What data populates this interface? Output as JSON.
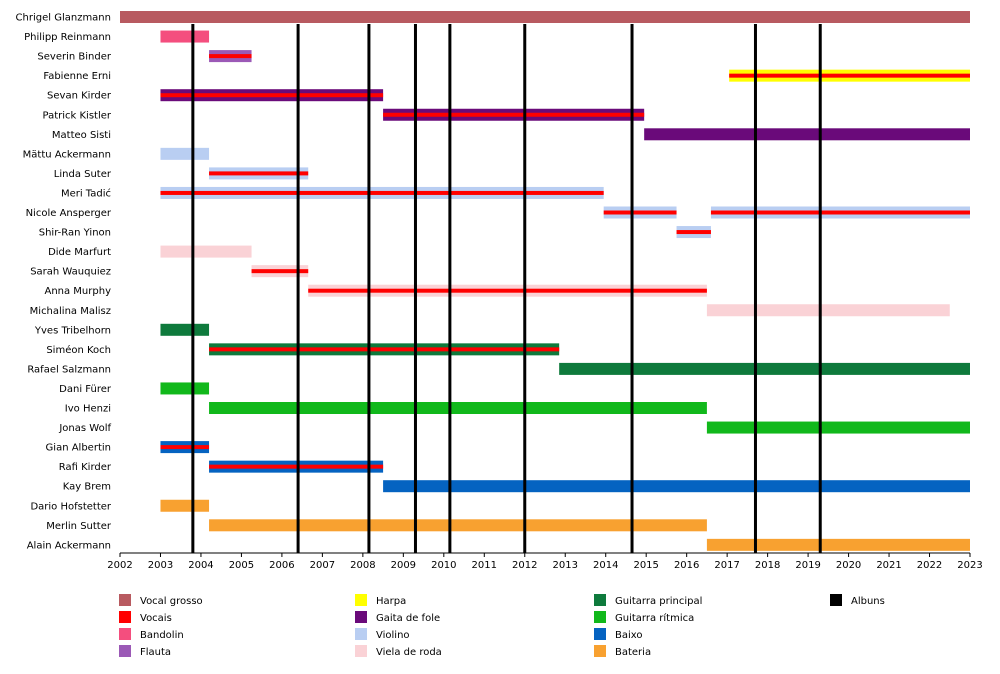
{
  "chart_data": {
    "type": "timeline",
    "x_range": [
      2002,
      2023
    ],
    "x_ticks": [
      "2002",
      "2003",
      "2004",
      "2005",
      "2006",
      "2007",
      "2008",
      "2009",
      "2010",
      "2011",
      "2012",
      "2013",
      "2014",
      "2015",
      "2016",
      "2017",
      "2018",
      "2019",
      "2020",
      "2021",
      "2022",
      "2023"
    ],
    "album_years": [
      2003.8,
      2006.4,
      2008.15,
      2009.3,
      2010.15,
      2012.0,
      2014.65,
      2017.7,
      2019.3
    ],
    "roles": {
      "vocal_grosso": {
        "label": "Vocal grosso",
        "color": "#b85a60"
      },
      "vocais": {
        "label": "Vocais",
        "color": "#ff0000"
      },
      "bandolin": {
        "label": "Bandolin",
        "color": "#f44e7e"
      },
      "flauta": {
        "label": "Flauta",
        "color": "#9b59b6"
      },
      "harpa": {
        "label": "Harpa",
        "color": "#ffff00"
      },
      "gaita": {
        "label": "Gaita de fole",
        "color": "#6a0a7a"
      },
      "violino": {
        "label": "Violino",
        "color": "#b9cef2"
      },
      "viela": {
        "label": "Viela de roda",
        "color": "#fad2d6"
      },
      "guitarra_principal": {
        "label": "Guitarra principal",
        "color": "#0e7a3c"
      },
      "guitarra_ritmica": {
        "label": "Guitarra rítmica",
        "color": "#11b81b"
      },
      "baixo": {
        "label": "Baixo",
        "color": "#0563c1"
      },
      "bateria": {
        "label": "Bateria",
        "color": "#f8a130"
      },
      "albuns": {
        "label": "Albuns",
        "color": "#000000"
      }
    },
    "legend_columns": [
      [
        "vocal_grosso",
        "vocais",
        "bandolin",
        "flauta"
      ],
      [
        "harpa",
        "gaita",
        "violino",
        "viela"
      ],
      [
        "guitarra_principal",
        "guitarra_ritmica",
        "baixo",
        "bateria"
      ],
      [
        "albuns"
      ]
    ],
    "members": [
      {
        "name": "Chrigel Glanzmann",
        "bars": [
          {
            "start": 2002,
            "end": 2023,
            "role": "vocal_grosso"
          }
        ]
      },
      {
        "name": "Philipp Reinmann",
        "bars": [
          {
            "start": 2003,
            "end": 2004.2,
            "role": "bandolin"
          }
        ]
      },
      {
        "name": "Severin Binder",
        "bars": [
          {
            "start": 2004.2,
            "end": 2005.25,
            "role": "flauta",
            "stripe": "vocais"
          }
        ]
      },
      {
        "name": "Fabienne Erni",
        "bars": [
          {
            "start": 2017.05,
            "end": 2023,
            "role": "harpa",
            "stripe": "vocais"
          }
        ]
      },
      {
        "name": "Sevan Kirder",
        "bars": [
          {
            "start": 2003,
            "end": 2008.5,
            "role": "gaita",
            "stripe": "vocais"
          }
        ]
      },
      {
        "name": "Patrick Kistler",
        "bars": [
          {
            "start": 2008.5,
            "end": 2014.95,
            "role": "gaita",
            "stripe": "vocais"
          }
        ]
      },
      {
        "name": "Matteo Sisti",
        "bars": [
          {
            "start": 2014.95,
            "end": 2023,
            "role": "gaita"
          }
        ]
      },
      {
        "name": "Mättu Ackermann",
        "bars": [
          {
            "start": 2003,
            "end": 2004.2,
            "role": "violino"
          }
        ]
      },
      {
        "name": "Linda Suter",
        "bars": [
          {
            "start": 2004.2,
            "end": 2006.65,
            "role": "violino",
            "stripe": "vocais"
          }
        ]
      },
      {
        "name": "Meri Tadić",
        "bars": [
          {
            "start": 2003,
            "end": 2013.95,
            "role": "violino",
            "stripe": "vocais"
          }
        ]
      },
      {
        "name": "Nicole Ansperger",
        "bars": [
          {
            "start": 2013.95,
            "end": 2015.75,
            "role": "violino",
            "stripe": "vocais"
          },
          {
            "start": 2016.6,
            "end": 2023,
            "role": "violino",
            "stripe": "vocais"
          }
        ]
      },
      {
        "name": "Shir-Ran Yinon",
        "bars": [
          {
            "start": 2015.75,
            "end": 2016.6,
            "role": "violino",
            "stripe": "vocais"
          }
        ]
      },
      {
        "name": "Dide Marfurt",
        "bars": [
          {
            "start": 2003,
            "end": 2005.25,
            "role": "viela"
          }
        ]
      },
      {
        "name": "Sarah Wauquiez",
        "bars": [
          {
            "start": 2005.25,
            "end": 2006.65,
            "role": "viela",
            "stripe": "vocais"
          }
        ]
      },
      {
        "name": "Anna Murphy",
        "bars": [
          {
            "start": 2006.65,
            "end": 2016.5,
            "role": "viela",
            "stripe": "vocais"
          }
        ]
      },
      {
        "name": "Michalina Malisz",
        "bars": [
          {
            "start": 2016.5,
            "end": 2022.5,
            "role": "viela"
          }
        ]
      },
      {
        "name": "Yves Tribelhorn",
        "bars": [
          {
            "start": 2003,
            "end": 2004.2,
            "role": "guitarra_principal"
          }
        ]
      },
      {
        "name": "Siméon Koch",
        "bars": [
          {
            "start": 2004.2,
            "end": 2012.85,
            "role": "guitarra_principal",
            "stripe": "vocais"
          }
        ]
      },
      {
        "name": "Rafael Salzmann",
        "bars": [
          {
            "start": 2012.85,
            "end": 2023,
            "role": "guitarra_principal"
          }
        ]
      },
      {
        "name": "Dani Fürer",
        "bars": [
          {
            "start": 2003,
            "end": 2004.2,
            "role": "guitarra_ritmica"
          }
        ]
      },
      {
        "name": "Ivo Henzi",
        "bars": [
          {
            "start": 2004.2,
            "end": 2016.5,
            "role": "guitarra_ritmica"
          }
        ]
      },
      {
        "name": "Jonas Wolf",
        "bars": [
          {
            "start": 2016.5,
            "end": 2023,
            "role": "guitarra_ritmica"
          }
        ]
      },
      {
        "name": "Gian Albertin",
        "bars": [
          {
            "start": 2003,
            "end": 2004.2,
            "role": "baixo",
            "stripe": "vocais"
          }
        ]
      },
      {
        "name": "Rafi Kirder",
        "bars": [
          {
            "start": 2004.2,
            "end": 2008.5,
            "role": "baixo",
            "stripe": "vocais"
          }
        ]
      },
      {
        "name": "Kay Brem",
        "bars": [
          {
            "start": 2008.5,
            "end": 2023,
            "role": "baixo"
          }
        ]
      },
      {
        "name": "Dario Hofstetter",
        "bars": [
          {
            "start": 2003,
            "end": 2004.2,
            "role": "bateria"
          }
        ]
      },
      {
        "name": "Merlin Sutter",
        "bars": [
          {
            "start": 2004.2,
            "end": 2016.5,
            "role": "bateria"
          }
        ]
      },
      {
        "name": "Alain Ackermann",
        "bars": [
          {
            "start": 2016.5,
            "end": 2023,
            "role": "bateria"
          }
        ]
      }
    ]
  }
}
